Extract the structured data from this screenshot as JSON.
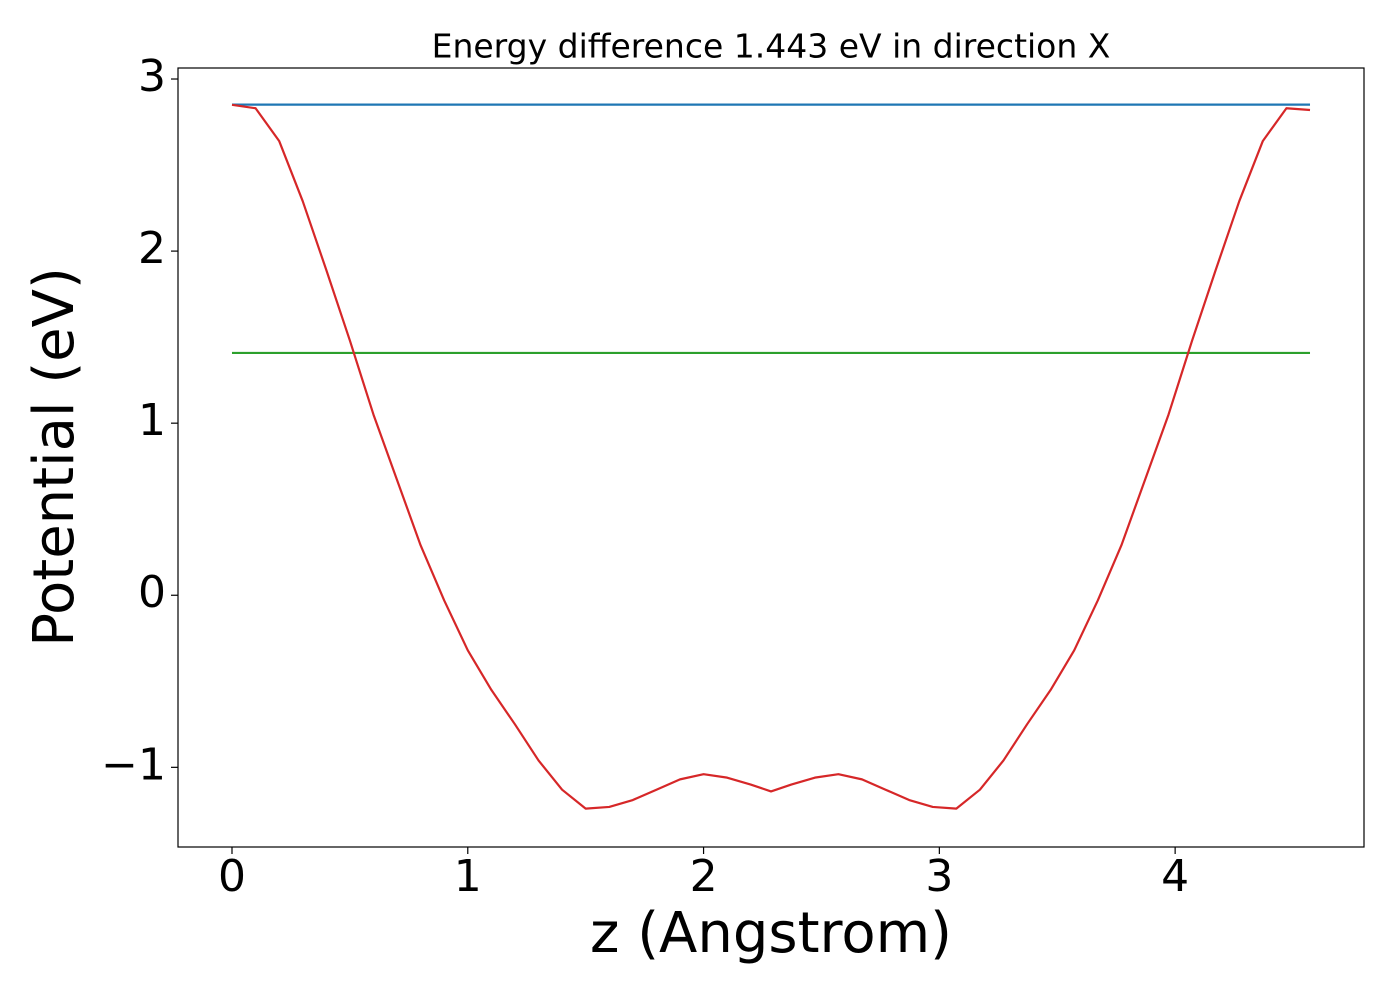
{
  "chart_data": {
    "type": "line",
    "title": "Energy difference 1.443 eV in direction X",
    "xlabel": "z (Angstrom)",
    "ylabel": "Potential (eV)",
    "xlim": [
      -0.229,
      4.801
    ],
    "ylim": [
      -1.463,
      3.064
    ],
    "xticks": [
      0,
      1,
      2,
      3,
      4
    ],
    "yticks": [
      {
        "value": -1,
        "label": "−1"
      },
      0,
      1,
      2,
      3
    ],
    "grid": false,
    "series": [
      {
        "color": "#1f77b4",
        "x": [
          0,
          4.572
        ],
        "values": [
          2.851,
          2.851
        ]
      },
      {
        "color": "#2ca02c",
        "x": [
          0,
          4.572
        ],
        "values": [
          1.408,
          1.408
        ]
      },
      {
        "color": "#d62728",
        "x": [
          0,
          0.1,
          0.2,
          0.3,
          0.4,
          0.5,
          0.6,
          0.7,
          0.8,
          0.9,
          1.0,
          1.1,
          1.2,
          1.3,
          1.4,
          1.5,
          1.6,
          1.7,
          1.8,
          1.9,
          2.0,
          2.1,
          2.2,
          2.286,
          2.372,
          2.472,
          2.572,
          2.672,
          2.772,
          2.872,
          2.972,
          3.072,
          3.172,
          3.272,
          3.372,
          3.472,
          3.572,
          3.672,
          3.772,
          3.872,
          3.972,
          4.072,
          4.172,
          4.272,
          4.372,
          4.472,
          4.572
        ],
        "values": [
          2.85,
          2.83,
          2.64,
          2.29,
          1.89,
          1.48,
          1.05,
          0.67,
          0.29,
          -0.03,
          -0.32,
          -0.55,
          -0.75,
          -0.96,
          -1.13,
          -1.24,
          -1.23,
          -1.19,
          -1.13,
          -1.07,
          -1.04,
          -1.06,
          -1.1,
          -1.14,
          -1.1,
          -1.06,
          -1.04,
          -1.07,
          -1.13,
          -1.19,
          -1.23,
          -1.24,
          -1.13,
          -0.96,
          -0.75,
          -0.55,
          -0.32,
          -0.03,
          0.29,
          0.67,
          1.05,
          1.48,
          1.89,
          2.29,
          2.64,
          2.83,
          2.82
        ]
      }
    ]
  }
}
